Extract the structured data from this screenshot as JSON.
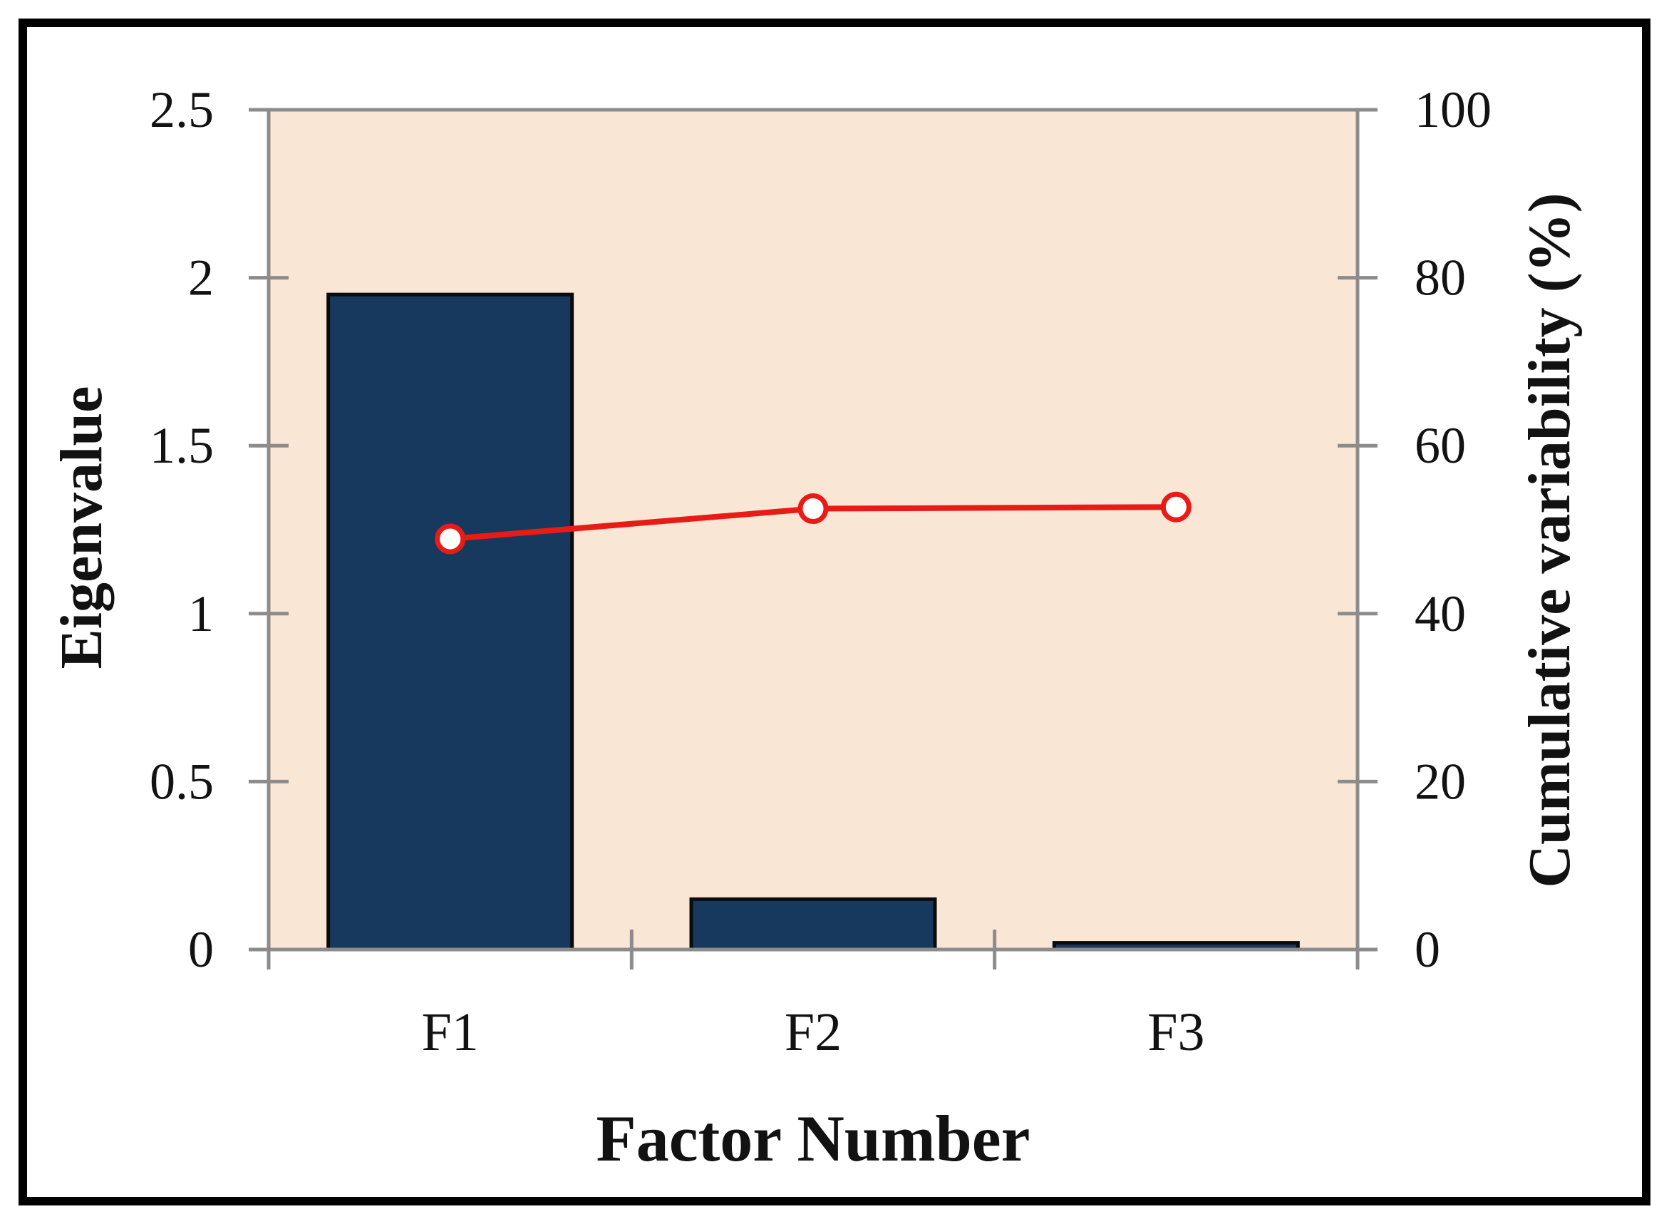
{
  "chart_data": {
    "type": "combo",
    "categories": [
      "F1",
      "F2",
      "F3"
    ],
    "series": [
      {
        "name": "Eigenvalue",
        "type": "bar",
        "axis": "left",
        "values": [
          1.95,
          0.15,
          0.02
        ],
        "color": "#17395d",
        "border_color": "#0b0b0b"
      },
      {
        "name": "Cumulative variability (%)",
        "type": "line",
        "axis": "right",
        "values": [
          48.9,
          52.5,
          52.7
        ],
        "color": "#e81b17",
        "marker": "open-circle-white-fill"
      }
    ],
    "left_axis": {
      "label": "Eigenvalue",
      "tick_values": [
        0,
        0.5,
        1,
        1.5,
        2,
        2.5
      ],
      "tick_labels": [
        "0",
        "0.5",
        "1",
        "1.5",
        "2",
        "2.5"
      ],
      "range": [
        0,
        2.5
      ]
    },
    "right_axis": {
      "label": "Cumulative variability (%)",
      "tick_values": [
        0,
        20,
        40,
        60,
        80,
        100
      ],
      "tick_labels": [
        "0",
        "20",
        "40",
        "60",
        "80",
        "100"
      ],
      "range": [
        0,
        100
      ]
    },
    "x_axis": {
      "label": "Factor Number"
    },
    "legend_position": "none",
    "grid": "off",
    "plot_background": "#fae6d5",
    "axis_color": "#8c8c8c",
    "frame_color": "#000000"
  }
}
